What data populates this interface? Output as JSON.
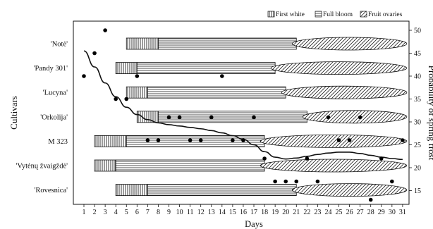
{
  "chart_data": {
    "type": "bar",
    "xlabel": "Days",
    "ylabel": "Cultivars",
    "y2label": "Probability of spring frost",
    "x_ticks": [
      1,
      2,
      3,
      4,
      5,
      6,
      7,
      8,
      9,
      10,
      11,
      12,
      13,
      14,
      15,
      16,
      17,
      18,
      19,
      20,
      21,
      22,
      23,
      24,
      25,
      26,
      27,
      28,
      29,
      30,
      31
    ],
    "x_range": [
      0,
      31
    ],
    "y2_range": [
      12,
      52
    ],
    "y2_ticks": [
      15,
      20,
      25,
      30,
      35,
      40,
      45,
      50
    ],
    "legend": {
      "placement": "top-right",
      "items": [
        {
          "name": "First white",
          "pattern": "vertical"
        },
        {
          "name": "Full bloom",
          "pattern": "horizontal"
        },
        {
          "name": "Fruit ovaries",
          "pattern": "diagonal"
        }
      ]
    },
    "cultivars": [
      {
        "name": "'Notė'",
        "first_white": [
          5,
          8
        ],
        "full_bloom": [
          8,
          21
        ],
        "fruit_ovaries": [
          21,
          31
        ]
      },
      {
        "name": "'Pandy 301'",
        "first_white": [
          4,
          6
        ],
        "full_bloom": [
          6,
          19
        ],
        "fruit_ovaries": [
          19,
          31
        ]
      },
      {
        "name": "'Lucyna'",
        "first_white": [
          5,
          7
        ],
        "full_bloom": [
          7,
          20
        ],
        "fruit_ovaries": [
          20,
          31
        ]
      },
      {
        "name": "'Orkolija'",
        "first_white": [
          6,
          8
        ],
        "full_bloom": [
          8,
          22
        ],
        "fruit_ovaries": [
          22,
          31
        ]
      },
      {
        "name": "M 323",
        "first_white": [
          2,
          5
        ],
        "full_bloom": [
          5,
          18
        ],
        "fruit_ovaries": [
          18,
          31
        ]
      },
      {
        "name": "'Vytėnų žvaigždė'",
        "first_white": [
          2,
          4
        ],
        "full_bloom": [
          4,
          18
        ],
        "fruit_ovaries": [
          18,
          31
        ]
      },
      {
        "name": "'Rovesnica'",
        "first_white": [
          4,
          7
        ],
        "full_bloom": [
          7,
          21
        ],
        "fruit_ovaries": [
          21,
          31
        ]
      }
    ],
    "frost_points": [
      {
        "day": 1,
        "frost": 40
      },
      {
        "day": 2,
        "frost": 45
      },
      {
        "day": 3,
        "frost": 50
      },
      {
        "day": 4,
        "frost": 35
      },
      {
        "day": 5,
        "frost": 35
      },
      {
        "day": 6,
        "frost": 40
      },
      {
        "day": 7,
        "frost": 26
      },
      {
        "day": 8,
        "frost": 26
      },
      {
        "day": 9,
        "frost": 31
      },
      {
        "day": 10,
        "frost": 31
      },
      {
        "day": 11,
        "frost": 26
      },
      {
        "day": 12,
        "frost": 26
      },
      {
        "day": 13,
        "frost": 31
      },
      {
        "day": 14,
        "frost": 40
      },
      {
        "day": 15,
        "frost": 26
      },
      {
        "day": 16,
        "frost": 26
      },
      {
        "day": 17,
        "frost": 31
      },
      {
        "day": 18,
        "frost": 22
      },
      {
        "day": 19,
        "frost": 17
      },
      {
        "day": 20,
        "frost": 17
      },
      {
        "day": 21,
        "frost": 17
      },
      {
        "day": 22,
        "frost": 22
      },
      {
        "day": 23,
        "frost": 17
      },
      {
        "day": 24,
        "frost": 31
      },
      {
        "day": 25,
        "frost": 26
      },
      {
        "day": 26,
        "frost": 26
      },
      {
        "day": 27,
        "frost": 31
      },
      {
        "day": 28,
        "frost": 13
      },
      {
        "day": 29,
        "frost": 22
      },
      {
        "day": 30,
        "frost": 17
      },
      {
        "day": 31,
        "frost": 26
      }
    ],
    "trend_curve": [
      {
        "day": 1,
        "frost": 45.5
      },
      {
        "day": 2,
        "frost": 42
      },
      {
        "day": 3,
        "frost": 38.5
      },
      {
        "day": 4,
        "frost": 35.5
      },
      {
        "day": 5,
        "frost": 33.2
      },
      {
        "day": 6,
        "frost": 31.6
      },
      {
        "day": 7,
        "frost": 30.5
      },
      {
        "day": 8,
        "frost": 29.8
      },
      {
        "day": 9,
        "frost": 29.4
      },
      {
        "day": 10,
        "frost": 29.1
      },
      {
        "day": 11,
        "frost": 28.8
      },
      {
        "day": 12,
        "frost": 28.5
      },
      {
        "day": 13,
        "frost": 28.1
      },
      {
        "day": 14,
        "frost": 27.6
      },
      {
        "day": 15,
        "frost": 27
      },
      {
        "day": 16,
        "frost": 26.2
      },
      {
        "day": 17,
        "frost": 25
      },
      {
        "day": 18,
        "frost": 23.5
      },
      {
        "day": 19,
        "frost": 22.3
      },
      {
        "day": 20,
        "frost": 21.9
      },
      {
        "day": 21,
        "frost": 22.1
      },
      {
        "day": 22,
        "frost": 22.5
      },
      {
        "day": 23,
        "frost": 22.9
      },
      {
        "day": 24,
        "frost": 23.2
      },
      {
        "day": 25,
        "frost": 23.4
      },
      {
        "day": 26,
        "frost": 23.4
      },
      {
        "day": 27,
        "frost": 23.1
      },
      {
        "day": 28,
        "frost": 22.7
      },
      {
        "day": 29,
        "frost": 22.3
      },
      {
        "day": 30,
        "frost": 22
      },
      {
        "day": 31,
        "frost": 21.8
      }
    ]
  }
}
